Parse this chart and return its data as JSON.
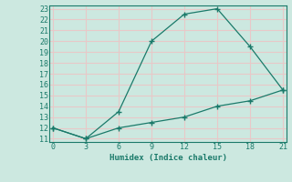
{
  "xlabel": "Humidex (Indice chaleur)",
  "line1_x": [
    0,
    3,
    6,
    9,
    12,
    15,
    18,
    21
  ],
  "line1_y": [
    12,
    11,
    13.5,
    20,
    22.5,
    23,
    19.5,
    15.5
  ],
  "line2_x": [
    0,
    3,
    6,
    9,
    12,
    15,
    18,
    21
  ],
  "line2_y": [
    12,
    11,
    12,
    12.5,
    13,
    14,
    14.5,
    15.5
  ],
  "line_color": "#1a7a6a",
  "bg_color": "#cce8e0",
  "grid_color": "#e8c8c8",
  "xlim": [
    -0.3,
    21.3
  ],
  "ylim": [
    10.7,
    23.3
  ],
  "xticks": [
    0,
    3,
    6,
    9,
    12,
    15,
    18,
    21
  ],
  "yticks": [
    11,
    12,
    13,
    14,
    15,
    16,
    17,
    18,
    19,
    20,
    21,
    22,
    23
  ]
}
